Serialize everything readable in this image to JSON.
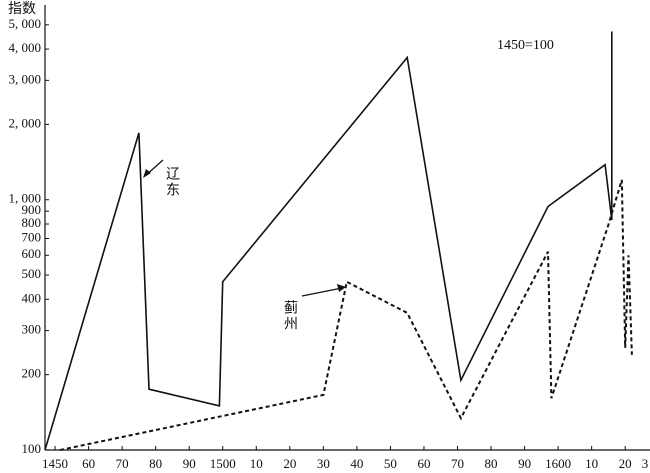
{
  "chart_data": {
    "type": "line",
    "y_label": "指数",
    "annotation": "1450=100",
    "log_scale": true,
    "grid": false,
    "xlim": [
      1447,
      1627.4
    ],
    "ylim": [
      100,
      6000
    ],
    "xticks": [
      1450,
      {
        "value": 1460,
        "label": "60"
      },
      {
        "value": 1470,
        "label": "70"
      },
      {
        "value": 1480,
        "label": "80"
      },
      {
        "value": 1490,
        "label": "90"
      },
      1500,
      {
        "value": 1510,
        "label": "10"
      },
      {
        "value": 1520,
        "label": "20"
      },
      {
        "value": 1530,
        "label": "30"
      },
      {
        "value": 1540,
        "label": "40"
      },
      {
        "value": 1550,
        "label": "50"
      },
      {
        "value": 1560,
        "label": "60"
      },
      {
        "value": 1570,
        "label": "70"
      },
      {
        "value": 1580,
        "label": "80"
      },
      {
        "value": 1590,
        "label": "90"
      },
      1600,
      {
        "value": 1610,
        "label": "10"
      },
      {
        "value": 1620,
        "label": "20"
      },
      {
        "value": 1630,
        "label": "3"
      }
    ],
    "yticks": [
      100,
      200,
      300,
      400,
      500,
      600,
      700,
      800,
      900,
      {
        "value": 1000,
        "label": "1, 000"
      },
      {
        "value": 2000,
        "label": "2, 000"
      },
      {
        "value": 3000,
        "label": "3, 000"
      },
      {
        "value": 4000,
        "label": "4, 000"
      },
      {
        "value": 5000,
        "label": "5, 000"
      }
    ],
    "series": [
      {
        "name": "辽东",
        "color": "#111111",
        "dashed": false,
        "x": [
          1447,
          1475,
          1478,
          1499,
          1500,
          1555,
          1571,
          1597,
          1614,
          1616,
          1616
        ],
        "values": [
          100,
          1850,
          175,
          150,
          470,
          3700,
          190,
          940,
          1380,
          830,
          4700
        ]
      },
      {
        "name": "蓟州",
        "color": "#111111",
        "dashed": true,
        "x": [
          1451.5,
          1530,
          1537,
          1555,
          1571,
          1597,
          1598,
          1615,
          1619,
          1620,
          1621,
          1622
        ],
        "values": [
          100,
          166,
          470,
          353,
          134,
          620,
          161,
          794,
          1200,
          256,
          600,
          240
        ]
      }
    ]
  }
}
